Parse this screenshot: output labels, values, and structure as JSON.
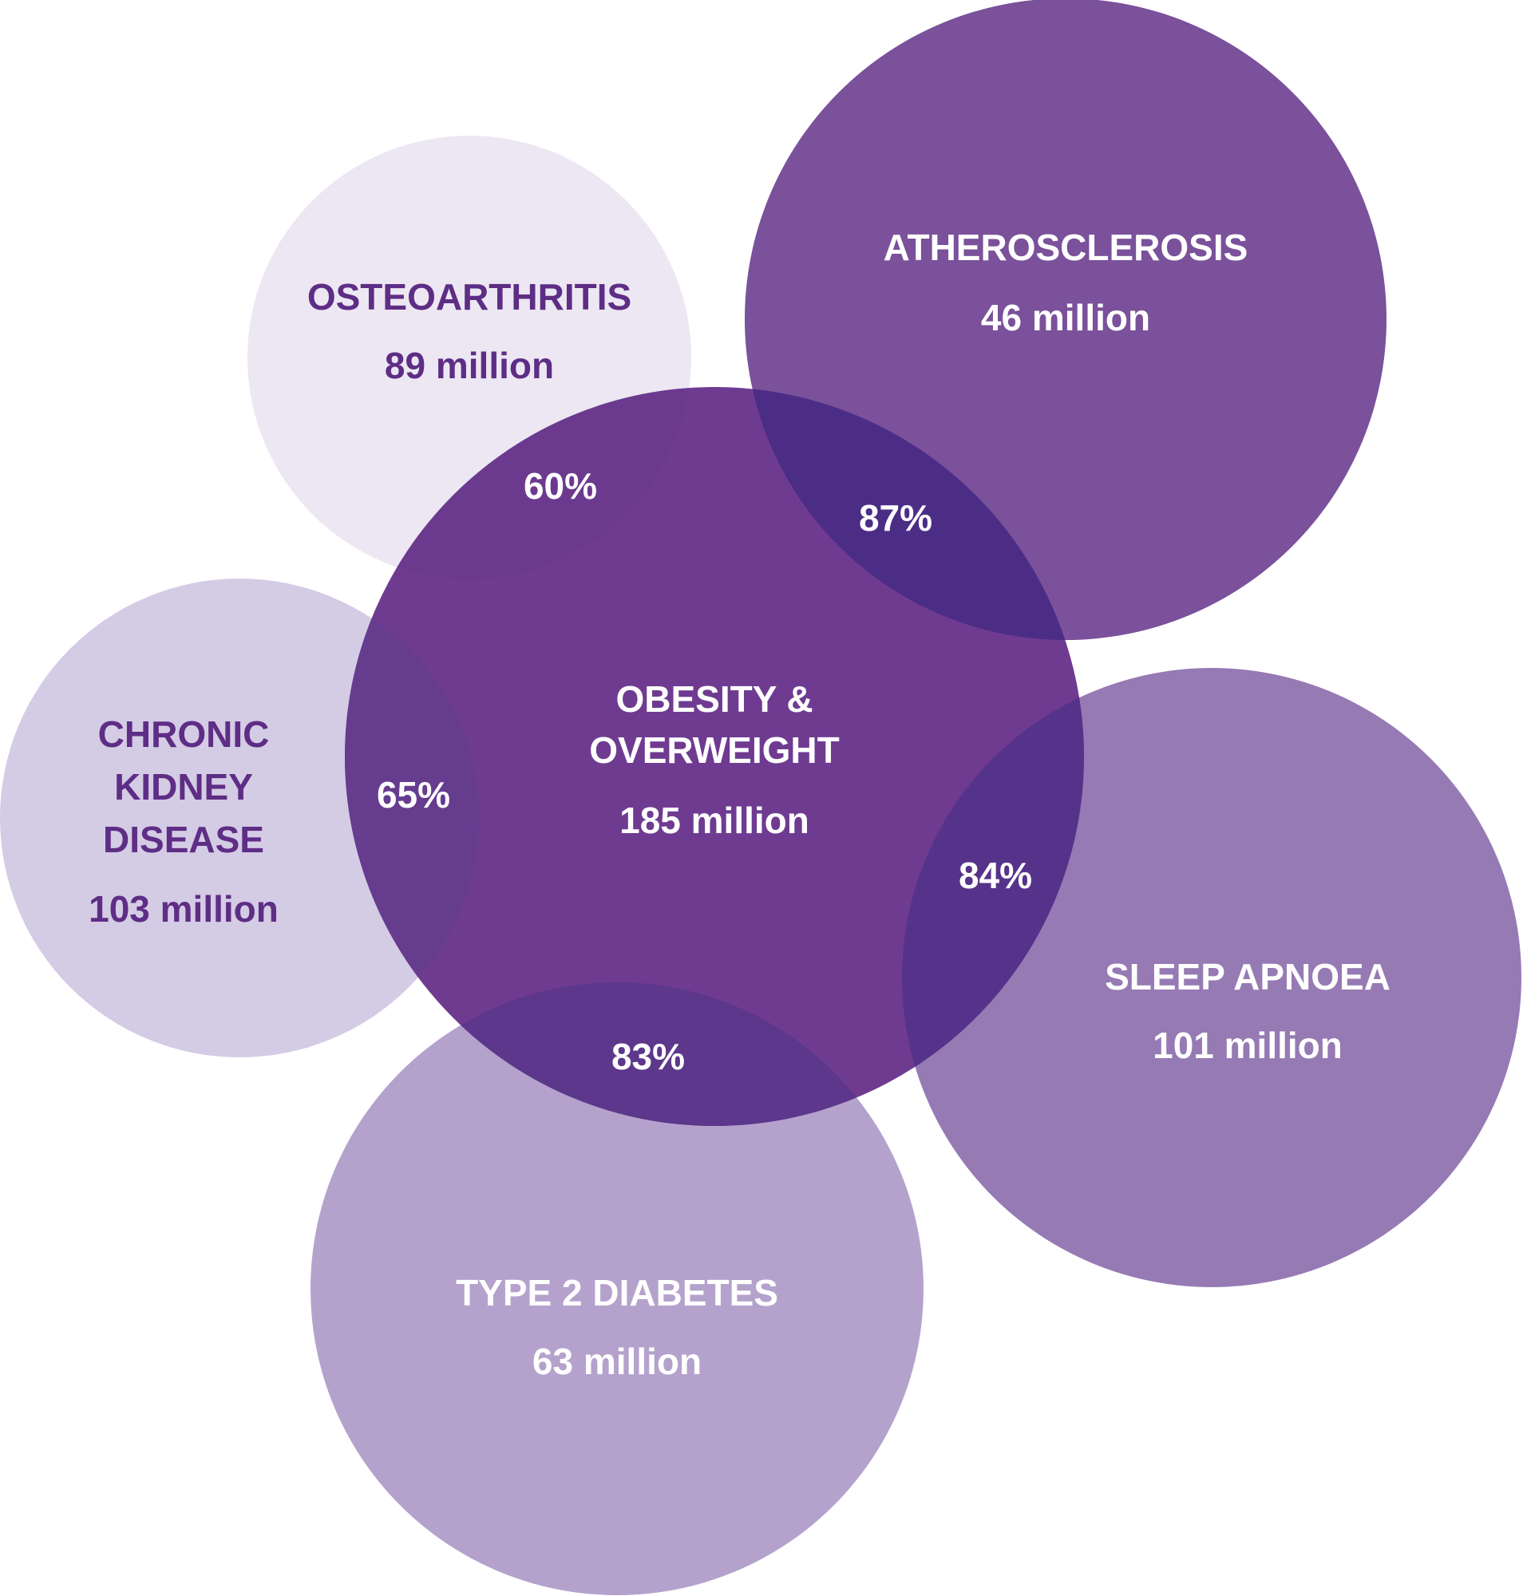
{
  "center": {
    "name_lines": [
      "OBESITY &",
      "OVERWEIGHT"
    ],
    "value": "185 million",
    "color": "#6f3b91"
  },
  "circles": [
    {
      "id": "osteoarthritis",
      "name_lines": [
        "OSTEOARTHRITIS"
      ],
      "value": "89 million",
      "color": "#ece7f2",
      "text_color": "#5e2d85",
      "overlap": "60%"
    },
    {
      "id": "atherosclerosis",
      "name_lines": [
        "ATHEROSCLEROSIS"
      ],
      "value": "46 million",
      "color": "#7a519a",
      "text_color": "#ffffff",
      "overlap": "87%"
    },
    {
      "id": "chronic-kidney-disease",
      "name_lines": [
        "CHRONIC",
        "KIDNEY",
        "DISEASE"
      ],
      "value": "103 million",
      "color": "#d4cbe5",
      "text_color": "#5e2d85",
      "overlap": "65%"
    },
    {
      "id": "sleep-apnoea",
      "name_lines": [
        "SLEEP APNOEA"
      ],
      "value": "101 million",
      "color": "#967ab4",
      "text_color": "#ffffff",
      "overlap": "84%"
    },
    {
      "id": "type-2-diabetes",
      "name_lines": [
        "TYPE 2 DIABETES"
      ],
      "value": "63 million",
      "color": "#b4a2cd",
      "text_color": "#ffffff",
      "overlap": "83%"
    }
  ]
}
